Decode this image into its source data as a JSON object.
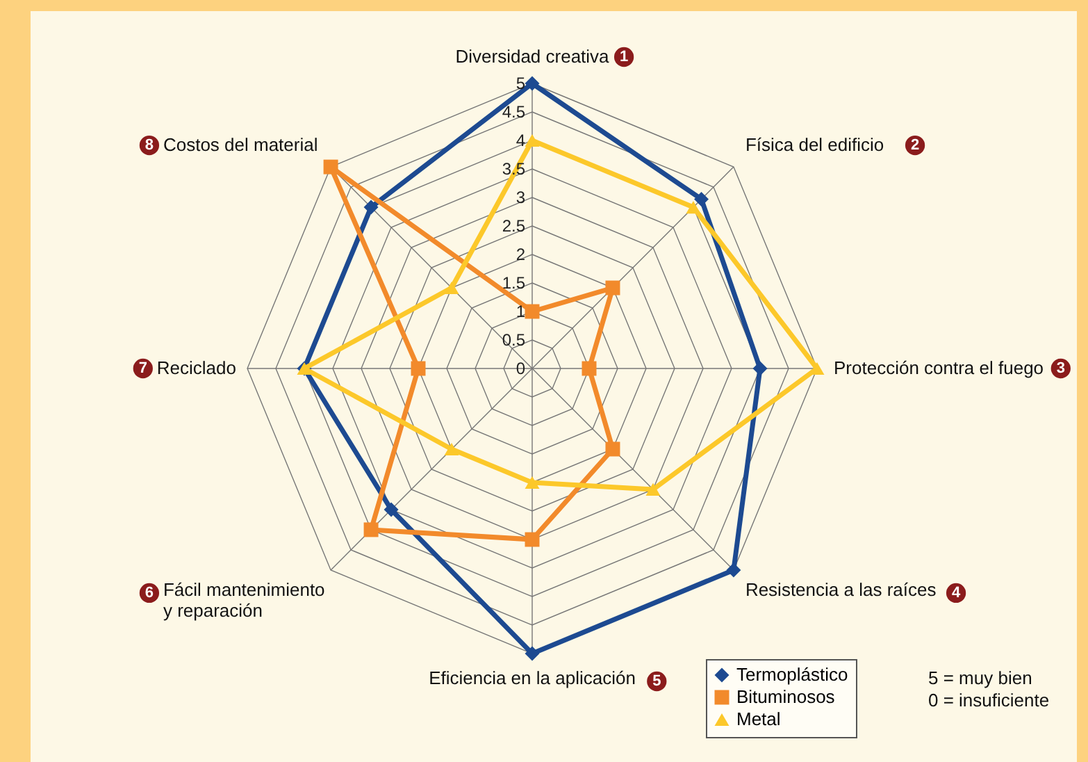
{
  "chart_data": {
    "type": "radar",
    "categories": [
      "Diversidad creativa",
      "Física del edificio",
      "Protección contra el fuego",
      "Resistencia a las raíces",
      "Eficiencia en la aplicación",
      "Fácil mantenimiento\ny reparación",
      "Reciclado",
      "Costos del material"
    ],
    "series": [
      {
        "name": "Termoplástico",
        "color": "#1d4a91",
        "marker": "diamond",
        "values": [
          5,
          4.2,
          4,
          5,
          5,
          3.5,
          4,
          4
        ]
      },
      {
        "name": "Bituminosos",
        "color": "#f28a2b",
        "marker": "square",
        "values": [
          1,
          2,
          1,
          2,
          3,
          4,
          2,
          5
        ]
      },
      {
        "name": "Metal",
        "color": "#fcc82a",
        "marker": "triangle",
        "values": [
          4,
          4,
          5,
          3,
          2,
          2,
          4,
          2
        ]
      }
    ],
    "ylim": [
      0,
      5
    ],
    "yticks": [
      0,
      0.5,
      1,
      1.5,
      2,
      2.5,
      3,
      3.5,
      4,
      4.5,
      5
    ],
    "grid": true,
    "legend": "bottom right",
    "line_style": "solid",
    "annotations": [
      "1",
      "2",
      "3",
      "4",
      "5",
      "6",
      "7",
      "8",
      "5 = muy bien",
      "0 = insuficiente"
    ]
  }
}
